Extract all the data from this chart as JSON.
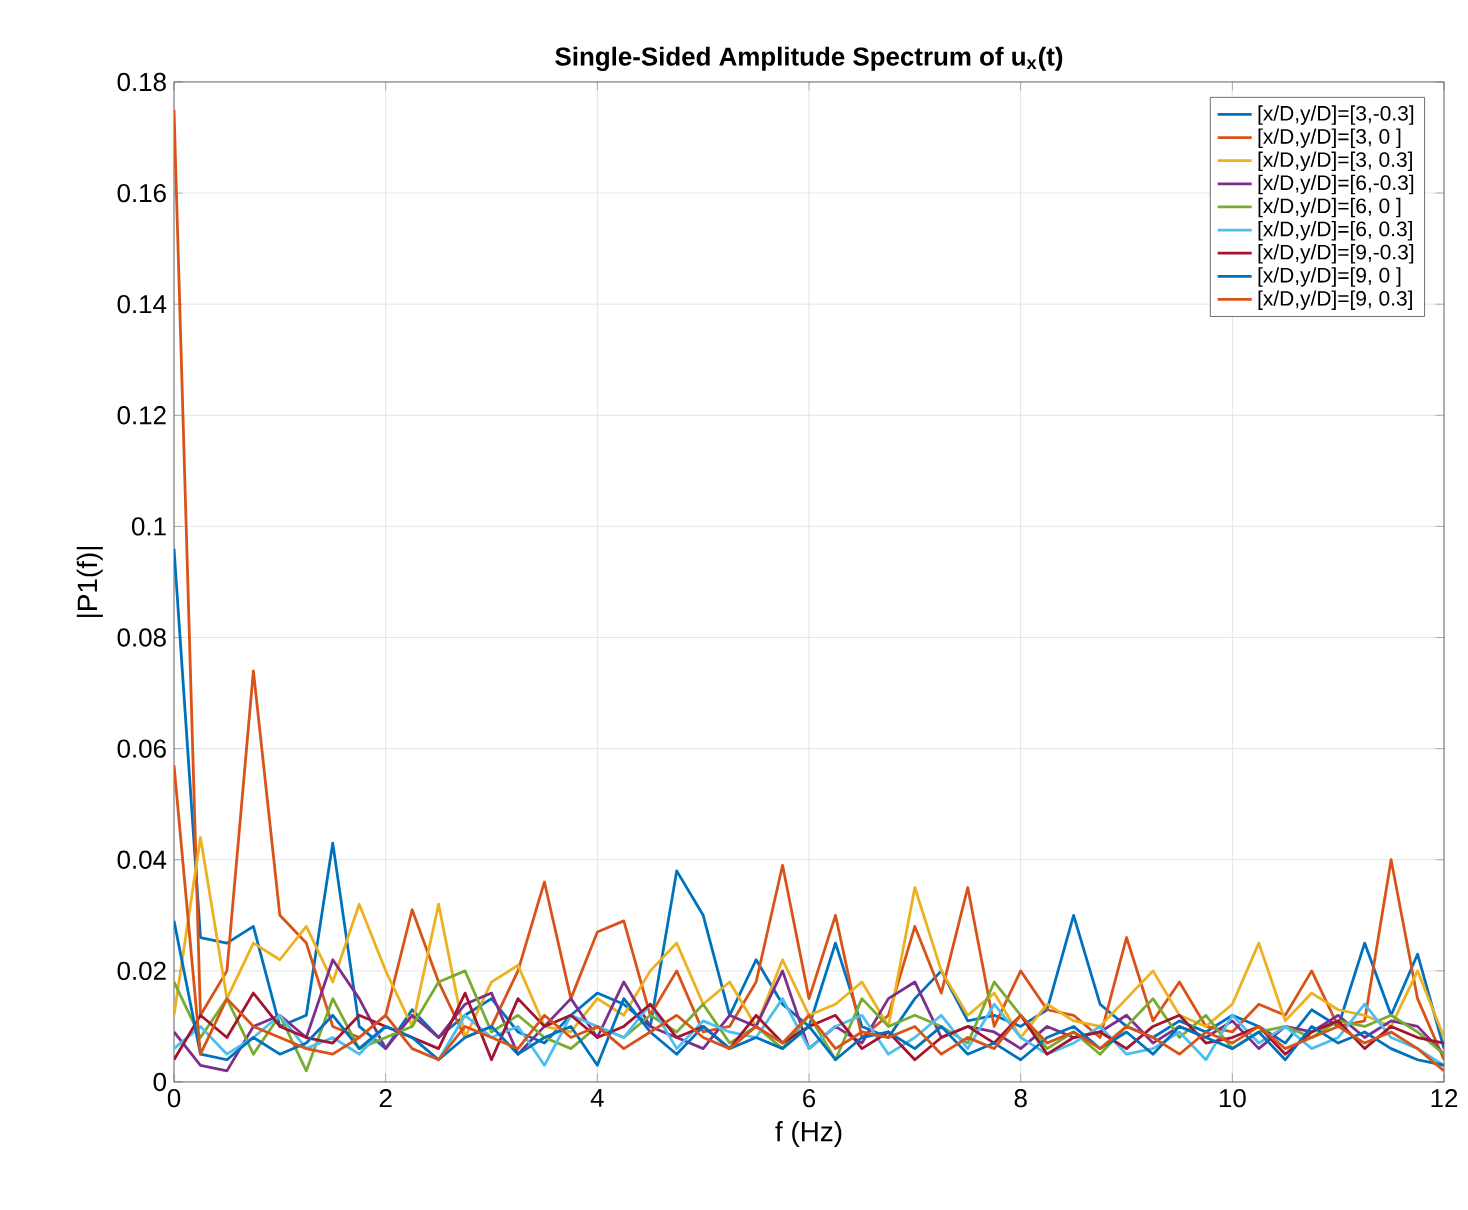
{
  "chart_data": {
    "type": "line",
    "title": "Single-Sided Amplitude Spectrum of u$_{x}$(t)",
    "xlabel": "f (Hz)",
    "ylabel": "|P1(f)|",
    "x": [
      0,
      0.25,
      0.5,
      0.75,
      1,
      1.25,
      1.5,
      1.75,
      2,
      2.25,
      2.5,
      2.75,
      3,
      3.25,
      3.5,
      3.75,
      4,
      4.25,
      4.5,
      4.75,
      5,
      5.25,
      5.5,
      5.75,
      6,
      6.25,
      6.5,
      6.75,
      7,
      7.25,
      7.5,
      7.75,
      8,
      8.25,
      8.5,
      8.75,
      9,
      9.25,
      9.5,
      9.75,
      10,
      10.25,
      10.5,
      10.75,
      11,
      11.25,
      11.5,
      11.75,
      12
    ],
    "xlim": [
      0,
      12
    ],
    "xticks": [
      0,
      2,
      4,
      6,
      8,
      10,
      12
    ],
    "ylim": [
      0,
      0.18
    ],
    "yticks": [
      0,
      0.02,
      0.04,
      0.06,
      0.08,
      0.1,
      0.12,
      0.14,
      0.16,
      0.18
    ],
    "grid": true,
    "legend": "top right",
    "marker": "none",
    "line_style": "solid",
    "series": [
      {
        "name": "[x/D,y/D]=[3,-0.3]",
        "color": "#0072bd",
        "values": [
          0.096,
          0.026,
          0.025,
          0.028,
          0.01,
          0.012,
          0.043,
          0.01,
          0.006,
          0.013,
          0.008,
          0.012,
          0.015,
          0.009,
          0.007,
          0.012,
          0.016,
          0.014,
          0.01,
          0.038,
          0.03,
          0.012,
          0.022,
          0.014,
          0.01,
          0.025,
          0.01,
          0.008,
          0.015,
          0.02,
          0.011,
          0.012,
          0.01,
          0.013,
          0.03,
          0.014,
          0.01,
          0.008,
          0.011,
          0.009,
          0.012,
          0.01,
          0.007,
          0.013,
          0.01,
          0.025,
          0.012,
          0.023,
          0.006
        ]
      },
      {
        "name": "[x/D,y/D]=[3, 0  ]",
        "color": "#d95319",
        "values": [
          0.175,
          0.012,
          0.02,
          0.074,
          0.03,
          0.025,
          0.01,
          0.008,
          0.012,
          0.031,
          0.018,
          0.008,
          0.01,
          0.02,
          0.036,
          0.015,
          0.027,
          0.029,
          0.012,
          0.02,
          0.009,
          0.01,
          0.018,
          0.039,
          0.015,
          0.03,
          0.008,
          0.012,
          0.028,
          0.016,
          0.035,
          0.01,
          0.02,
          0.013,
          0.012,
          0.008,
          0.026,
          0.011,
          0.018,
          0.01,
          0.009,
          0.014,
          0.012,
          0.02,
          0.01,
          0.011,
          0.04,
          0.015,
          0.004
        ]
      },
      {
        "name": "[x/D,y/D]=[3, 0.3]",
        "color": "#edb120",
        "values": [
          0.012,
          0.044,
          0.015,
          0.025,
          0.022,
          0.028,
          0.018,
          0.032,
          0.02,
          0.01,
          0.032,
          0.008,
          0.018,
          0.021,
          0.01,
          0.009,
          0.015,
          0.012,
          0.02,
          0.025,
          0.014,
          0.018,
          0.01,
          0.022,
          0.012,
          0.014,
          0.018,
          0.01,
          0.035,
          0.02,
          0.012,
          0.016,
          0.008,
          0.014,
          0.011,
          0.01,
          0.015,
          0.02,
          0.012,
          0.01,
          0.014,
          0.025,
          0.011,
          0.016,
          0.013,
          0.012,
          0.01,
          0.02,
          0.008
        ]
      },
      {
        "name": "[x/D,y/D]=[6,-0.3]",
        "color": "#7e2f8e",
        "values": [
          0.009,
          0.003,
          0.002,
          0.01,
          0.012,
          0.008,
          0.022,
          0.015,
          0.006,
          0.012,
          0.008,
          0.014,
          0.016,
          0.005,
          0.01,
          0.015,
          0.008,
          0.018,
          0.01,
          0.008,
          0.006,
          0.012,
          0.01,
          0.02,
          0.006,
          0.01,
          0.007,
          0.015,
          0.018,
          0.008,
          0.01,
          0.009,
          0.006,
          0.01,
          0.008,
          0.009,
          0.012,
          0.007,
          0.01,
          0.008,
          0.011,
          0.006,
          0.01,
          0.009,
          0.012,
          0.008,
          0.011,
          0.01,
          0.005
        ]
      },
      {
        "name": "[x/D,y/D]=[6, 0  ]",
        "color": "#77ac30",
        "values": [
          0.018,
          0.008,
          0.015,
          0.005,
          0.012,
          0.002,
          0.015,
          0.006,
          0.008,
          0.01,
          0.018,
          0.02,
          0.009,
          0.012,
          0.008,
          0.006,
          0.01,
          0.008,
          0.012,
          0.009,
          0.014,
          0.007,
          0.01,
          0.006,
          0.012,
          0.004,
          0.015,
          0.01,
          0.012,
          0.01,
          0.007,
          0.018,
          0.012,
          0.006,
          0.009,
          0.005,
          0.01,
          0.015,
          0.008,
          0.012,
          0.006,
          0.009,
          0.01,
          0.008,
          0.011,
          0.01,
          0.012,
          0.009,
          0.005
        ]
      },
      {
        "name": "[x/D,y/D]=[6, 0.3]",
        "color": "#4dbeee",
        "values": [
          0.006,
          0.01,
          0.005,
          0.008,
          0.012,
          0.006,
          0.008,
          0.005,
          0.01,
          0.008,
          0.004,
          0.012,
          0.008,
          0.01,
          0.003,
          0.012,
          0.01,
          0.008,
          0.014,
          0.006,
          0.011,
          0.009,
          0.008,
          0.015,
          0.006,
          0.01,
          0.012,
          0.005,
          0.008,
          0.012,
          0.006,
          0.014,
          0.008,
          0.005,
          0.007,
          0.01,
          0.005,
          0.006,
          0.009,
          0.004,
          0.012,
          0.007,
          0.01,
          0.006,
          0.008,
          0.014,
          0.008,
          0.006,
          0.003
        ]
      },
      {
        "name": "[x/D,y/D]=[9,-0.3]",
        "color": "#a2142f",
        "values": [
          0.004,
          0.012,
          0.008,
          0.016,
          0.01,
          0.008,
          0.007,
          0.012,
          0.01,
          0.008,
          0.006,
          0.016,
          0.004,
          0.015,
          0.01,
          0.012,
          0.008,
          0.01,
          0.014,
          0.008,
          0.01,
          0.006,
          0.012,
          0.007,
          0.01,
          0.012,
          0.006,
          0.009,
          0.004,
          0.008,
          0.01,
          0.007,
          0.012,
          0.005,
          0.008,
          0.009,
          0.006,
          0.01,
          0.012,
          0.007,
          0.008,
          0.01,
          0.005,
          0.009,
          0.011,
          0.006,
          0.01,
          0.008,
          0.007
        ]
      },
      {
        "name": "[x/D,y/D]=[9, 0  ]",
        "color": "#0072bd",
        "values": [
          0.029,
          0.005,
          0.004,
          0.008,
          0.005,
          0.007,
          0.012,
          0.006,
          0.01,
          0.008,
          0.004,
          0.008,
          0.01,
          0.005,
          0.008,
          0.01,
          0.003,
          0.015,
          0.009,
          0.005,
          0.01,
          0.006,
          0.008,
          0.006,
          0.01,
          0.004,
          0.008,
          0.009,
          0.006,
          0.01,
          0.005,
          0.007,
          0.004,
          0.008,
          0.01,
          0.006,
          0.009,
          0.005,
          0.01,
          0.008,
          0.006,
          0.009,
          0.004,
          0.01,
          0.007,
          0.009,
          0.006,
          0.004,
          0.003
        ]
      },
      {
        "name": "[x/D,y/D]=[9, 0.3]",
        "color": "#d95319",
        "values": [
          0.057,
          0.005,
          0.015,
          0.01,
          0.008,
          0.006,
          0.005,
          0.008,
          0.012,
          0.006,
          0.004,
          0.01,
          0.008,
          0.006,
          0.012,
          0.008,
          0.01,
          0.006,
          0.009,
          0.012,
          0.008,
          0.006,
          0.01,
          0.007,
          0.012,
          0.006,
          0.009,
          0.008,
          0.01,
          0.005,
          0.008,
          0.006,
          0.012,
          0.007,
          0.009,
          0.006,
          0.01,
          0.008,
          0.005,
          0.009,
          0.007,
          0.01,
          0.006,
          0.008,
          0.01,
          0.007,
          0.009,
          0.006,
          0.002
        ]
      }
    ]
  }
}
